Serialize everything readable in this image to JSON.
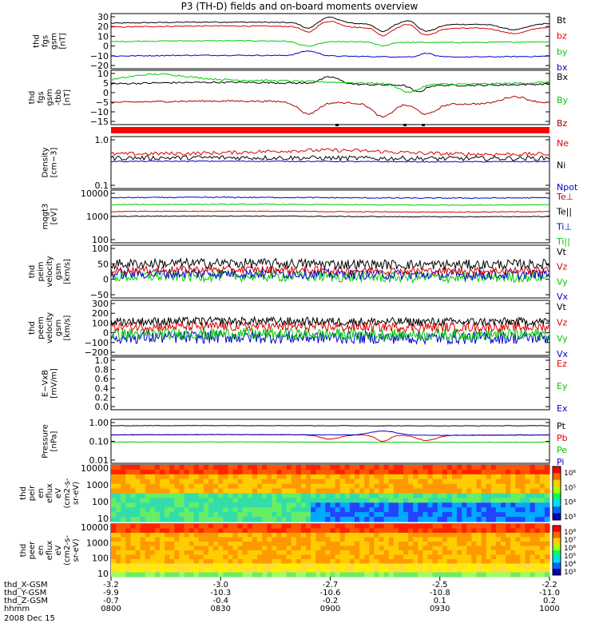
{
  "title": "P3 (TH-D) fields and on-board moments overview",
  "chart_data": {
    "type": "line",
    "x_label_rows": [
      {
        "name": "thd_X-GSM",
        "values": [
          "-3.2",
          "-3.0",
          "-2.7",
          "-2.5",
          "-2.2"
        ]
      },
      {
        "name": "thd_Y-GSM",
        "values": [
          "-9.9",
          "-10.3",
          "-10.6",
          "-10.8",
          "-11.0"
        ]
      },
      {
        "name": "thd_Z-GSM",
        "values": [
          "-0.7",
          "-0.4",
          "-0.2",
          "0.1",
          "0.2"
        ]
      },
      {
        "name": "hhmm",
        "values": [
          "0800",
          "0830",
          "0900",
          "0930",
          "1000"
        ]
      }
    ],
    "date": "2008 Dec 15",
    "panels": [
      {
        "ylabel": [
          "thd",
          "fgs",
          "gsm",
          "[nT]"
        ],
        "yticks": [
          "30",
          "20",
          "10",
          "0",
          "−10",
          "−20"
        ],
        "ylim": [
          -25,
          32
        ],
        "legend": [
          {
            "label": "Bt",
            "color": "#000000"
          },
          {
            "label": "bz",
            "color": "#dd0000"
          },
          {
            "label": "by",
            "color": "#00cc00"
          },
          {
            "label": "bx",
            "color": "#0000cc"
          }
        ]
      },
      {
        "ylabel": [
          "thd",
          "fgs",
          "gsm",
          "-tbb",
          "[nT]"
        ],
        "yticks": [
          "10",
          "5",
          "0",
          "−5",
          "−10",
          "−15"
        ],
        "ylim": [
          -18,
          14
        ],
        "legend": [
          {
            "label": "Bx",
            "color": "#000000"
          },
          {
            "label": "By",
            "color": "#00cc00"
          },
          {
            "label": "Bz",
            "color": "#aa0000"
          }
        ]
      },
      {
        "ylabel": [
          "Density",
          "[cm−3]"
        ],
        "yticks": [
          "1.0",
          "0.1"
        ],
        "scale": "log",
        "ylim": [
          0.1,
          1.3
        ],
        "legend": [
          {
            "label": "Ne",
            "color": "#dd0000"
          },
          {
            "label": "Ni",
            "color": "#000000"
          },
          {
            "label": "Npot",
            "color": "#0000cc"
          }
        ]
      },
      {
        "ylabel": [
          "mqgt3",
          "[eV]"
        ],
        "yticks": [
          "10000",
          "1000",
          "100"
        ],
        "scale": "log",
        "ylim": [
          100,
          12000
        ],
        "legend": [
          {
            "label": "Te⊥",
            "color": "#dd0000"
          },
          {
            "label": "Te||",
            "color": "#000000"
          },
          {
            "label": "Ti⊥",
            "color": "#0000cc"
          },
          {
            "label": "Ti||",
            "color": "#00cc00"
          }
        ]
      },
      {
        "ylabel": [
          "thd",
          "peim",
          "velocity",
          "gsm",
          "[km/s]"
        ],
        "yticks": [
          "100",
          "50",
          "0",
          "−50"
        ],
        "ylim": [
          -100,
          110
        ],
        "legend": [
          {
            "label": "Vt",
            "color": "#000000"
          },
          {
            "label": "Vz",
            "color": "#dd0000"
          },
          {
            "label": "Vy",
            "color": "#00cc00"
          },
          {
            "label": "Vx",
            "color": "#0000cc"
          }
        ]
      },
      {
        "ylabel": [
          "thd",
          "peem",
          "velocity",
          "gsm",
          "[km/s]"
        ],
        "yticks": [
          "300",
          "200",
          "100",
          "0",
          "−100",
          "−200"
        ],
        "ylim": [
          -210,
          310
        ],
        "legend": [
          {
            "label": "Vt",
            "color": "#000000"
          },
          {
            "label": "Vz",
            "color": "#dd0000"
          },
          {
            "label": "Vy",
            "color": "#00cc00"
          },
          {
            "label": "Vx",
            "color": "#0000cc"
          }
        ]
      },
      {
        "ylabel": [
          "E−VxB",
          "[mV/m]"
        ],
        "yticks": [
          "1.0",
          "0.8",
          "0.6",
          "0.4",
          "0.2",
          "0.0"
        ],
        "ylim": [
          0,
          1
        ],
        "legend": [
          {
            "label": "Ez",
            "color": "#dd0000"
          },
          {
            "label": "Ey",
            "color": "#00cc00"
          },
          {
            "label": "Ex",
            "color": "#0000cc"
          }
        ]
      },
      {
        "ylabel": [
          "Pressure",
          "[nPa]"
        ],
        "yticks": [
          "1.00",
          "0.10",
          "0.01"
        ],
        "scale": "log",
        "ylim": [
          0.01,
          1.2
        ],
        "legend": [
          {
            "label": "Pt",
            "color": "#000000"
          },
          {
            "label": "Pb",
            "color": "#dd0000"
          },
          {
            "label": "Pe",
            "color": "#00cc00"
          },
          {
            "label": "Pi",
            "color": "#0000cc"
          }
        ]
      },
      {
        "type": "heatmap",
        "ylabel": [
          "thd",
          "peir",
          "en",
          "eflux",
          "eV",
          "(cm2-s-",
          "sr-eV)"
        ],
        "yticks": [
          "10000",
          "1000",
          "100",
          "10"
        ],
        "scale": "log",
        "colorbar_ticks": [
          "10⁶",
          "10⁵",
          "10⁴",
          "10³"
        ]
      },
      {
        "type": "heatmap",
        "ylabel": [
          "thd",
          "peer",
          "en",
          "eflux",
          "eV",
          "(cm2-s-",
          "sr-eV)"
        ],
        "yticks": [
          "10000",
          "1000",
          "100",
          "10"
        ],
        "scale": "log",
        "colorbar_ticks": [
          "10⁸",
          "10⁷",
          "10⁶",
          "10⁵",
          "10⁴",
          "10³"
        ]
      }
    ]
  }
}
